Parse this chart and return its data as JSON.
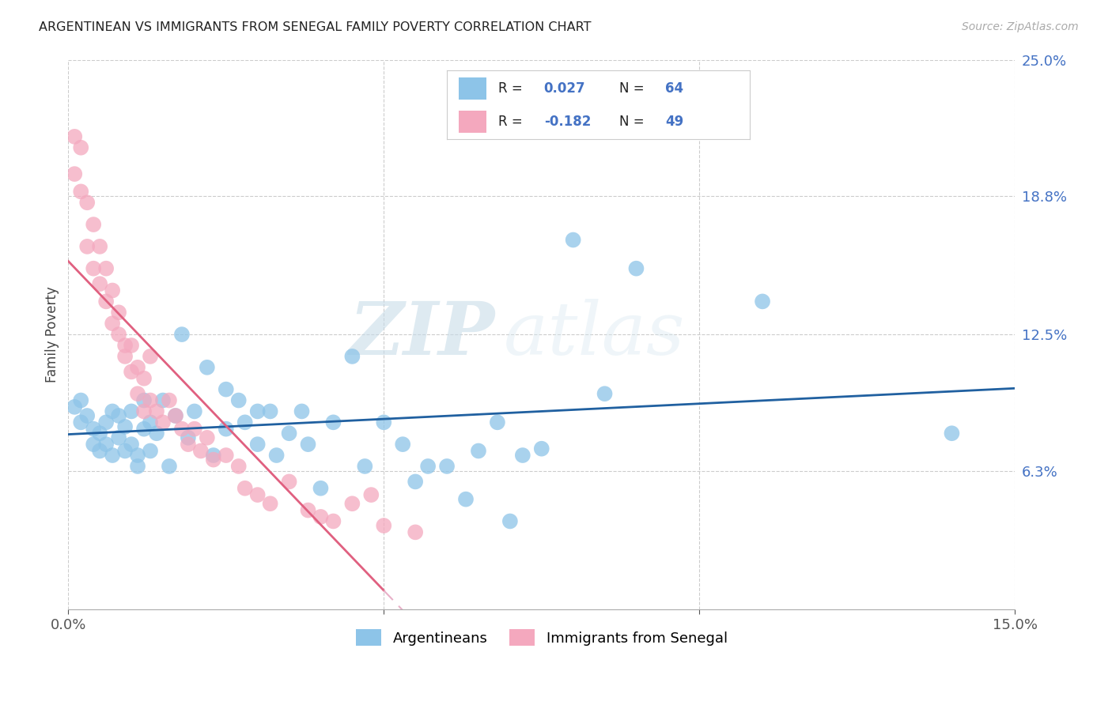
{
  "title": "ARGENTINEAN VS IMMIGRANTS FROM SENEGAL FAMILY POVERTY CORRELATION CHART",
  "source": "Source: ZipAtlas.com",
  "ylabel": "Family Poverty",
  "x_min": 0.0,
  "x_max": 0.15,
  "y_min": 0.0,
  "y_max": 0.25,
  "y_ticks_right": [
    0.063,
    0.125,
    0.188,
    0.25
  ],
  "y_tick_labels_right": [
    "6.3%",
    "12.5%",
    "18.8%",
    "25.0%"
  ],
  "legend_labels": [
    "Argentineans",
    "Immigrants from Senegal"
  ],
  "blue_color": "#8dc4e8",
  "pink_color": "#f4a8be",
  "blue_line_color": "#2060a0",
  "pink_line_color": "#e06080",
  "pink_dash_color": "#e8b0c8",
  "R_blue": "0.027",
  "N_blue": "64",
  "R_pink": "-0.182",
  "N_pink": "49",
  "watermark_zip": "ZIP",
  "watermark_atlas": "atlas",
  "blue_points_x": [
    0.001,
    0.002,
    0.002,
    0.003,
    0.004,
    0.004,
    0.005,
    0.005,
    0.006,
    0.006,
    0.007,
    0.007,
    0.008,
    0.008,
    0.009,
    0.009,
    0.01,
    0.01,
    0.011,
    0.011,
    0.012,
    0.012,
    0.013,
    0.013,
    0.014,
    0.015,
    0.016,
    0.017,
    0.018,
    0.019,
    0.02,
    0.022,
    0.023,
    0.025,
    0.025,
    0.027,
    0.028,
    0.03,
    0.03,
    0.032,
    0.033,
    0.035,
    0.037,
    0.038,
    0.04,
    0.042,
    0.045,
    0.047,
    0.05,
    0.053,
    0.055,
    0.057,
    0.06,
    0.063,
    0.065,
    0.068,
    0.07,
    0.072,
    0.075,
    0.08,
    0.085,
    0.09,
    0.11,
    0.14
  ],
  "blue_points_y": [
    0.092,
    0.095,
    0.085,
    0.088,
    0.082,
    0.075,
    0.08,
    0.072,
    0.085,
    0.075,
    0.09,
    0.07,
    0.088,
    0.078,
    0.083,
    0.072,
    0.09,
    0.075,
    0.07,
    0.065,
    0.095,
    0.082,
    0.085,
    0.072,
    0.08,
    0.095,
    0.065,
    0.088,
    0.125,
    0.078,
    0.09,
    0.11,
    0.07,
    0.1,
    0.082,
    0.095,
    0.085,
    0.09,
    0.075,
    0.09,
    0.07,
    0.08,
    0.09,
    0.075,
    0.055,
    0.085,
    0.115,
    0.065,
    0.085,
    0.075,
    0.058,
    0.065,
    0.065,
    0.05,
    0.072,
    0.085,
    0.04,
    0.07,
    0.073,
    0.168,
    0.098,
    0.155,
    0.14,
    0.08
  ],
  "pink_points_x": [
    0.001,
    0.001,
    0.002,
    0.002,
    0.003,
    0.003,
    0.004,
    0.004,
    0.005,
    0.005,
    0.006,
    0.006,
    0.007,
    0.007,
    0.008,
    0.008,
    0.009,
    0.009,
    0.01,
    0.01,
    0.011,
    0.011,
    0.012,
    0.012,
    0.013,
    0.013,
    0.014,
    0.015,
    0.016,
    0.017,
    0.018,
    0.019,
    0.02,
    0.021,
    0.022,
    0.023,
    0.025,
    0.027,
    0.028,
    0.03,
    0.032,
    0.035,
    0.038,
    0.04,
    0.042,
    0.045,
    0.048,
    0.05,
    0.055
  ],
  "pink_points_y": [
    0.215,
    0.198,
    0.21,
    0.19,
    0.185,
    0.165,
    0.175,
    0.155,
    0.165,
    0.148,
    0.155,
    0.14,
    0.145,
    0.13,
    0.135,
    0.125,
    0.12,
    0.115,
    0.12,
    0.108,
    0.11,
    0.098,
    0.105,
    0.09,
    0.115,
    0.095,
    0.09,
    0.085,
    0.095,
    0.088,
    0.082,
    0.075,
    0.082,
    0.072,
    0.078,
    0.068,
    0.07,
    0.065,
    0.055,
    0.052,
    0.048,
    0.058,
    0.045,
    0.042,
    0.04,
    0.048,
    0.052,
    0.038,
    0.035
  ]
}
